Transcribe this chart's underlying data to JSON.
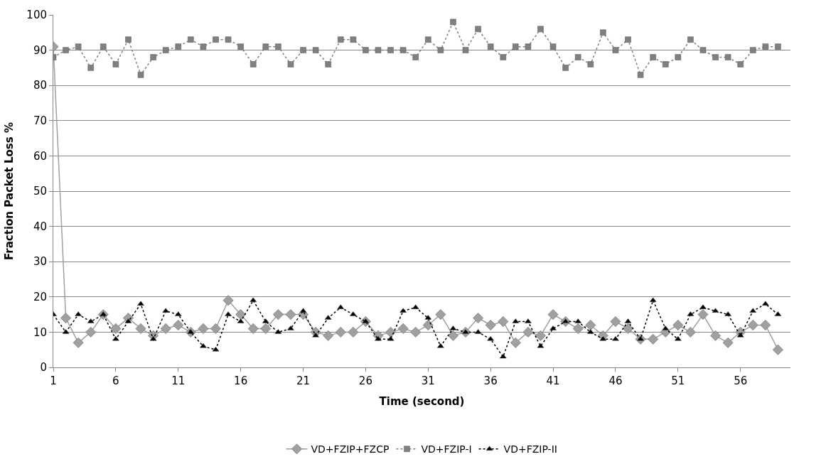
{
  "chart_data": {
    "type": "line",
    "xlabel": "Time (second)",
    "ylabel": "Fraction Packet Loss %",
    "x": [
      1,
      2,
      3,
      4,
      5,
      6,
      7,
      8,
      9,
      10,
      11,
      12,
      13,
      14,
      15,
      16,
      17,
      18,
      19,
      20,
      21,
      22,
      23,
      24,
      25,
      26,
      27,
      28,
      29,
      30,
      31,
      32,
      33,
      34,
      35,
      36,
      37,
      38,
      39,
      40,
      41,
      42,
      43,
      44,
      45,
      46,
      47,
      48,
      49,
      50,
      51,
      52,
      53,
      54,
      55,
      56,
      57,
      58,
      59
    ],
    "series": [
      {
        "name": "VD+FZIP+FZCP",
        "color": "#a0a0a0",
        "marker": "diamond",
        "line_style": "solid",
        "values": [
          91,
          14,
          7,
          10,
          15,
          11,
          14,
          11,
          9,
          11,
          12,
          10,
          11,
          11,
          19,
          15,
          11,
          11,
          15,
          15,
          15,
          10,
          9,
          10,
          10,
          13,
          9,
          10,
          11,
          10,
          12,
          15,
          9,
          10,
          14,
          12,
          13,
          7,
          10,
          9,
          15,
          13,
          11,
          12,
          9,
          13,
          11,
          8,
          8,
          10,
          12,
          10,
          15,
          9,
          7,
          10,
          12,
          12,
          5
        ]
      },
      {
        "name": "VD+FZIP-I",
        "color": "#808080",
        "marker": "square",
        "line_style": "dotted",
        "values": [
          88,
          90,
          91,
          85,
          91,
          86,
          93,
          83,
          88,
          90,
          91,
          93,
          91,
          93,
          93,
          91,
          86,
          91,
          91,
          86,
          90,
          90,
          86,
          93,
          93,
          90,
          90,
          90,
          90,
          88,
          93,
          90,
          98,
          90,
          96,
          91,
          88,
          91,
          91,
          96,
          91,
          85,
          88,
          86,
          95,
          90,
          93,
          83,
          88,
          86,
          88,
          93,
          90,
          88,
          88,
          86,
          90,
          91,
          91
        ]
      },
      {
        "name": "VD+FZIP-II",
        "color": "#000000",
        "marker": "triangle",
        "line_style": "dotted",
        "values": [
          15,
          10,
          15,
          13,
          15,
          8,
          13,
          18,
          8,
          16,
          15,
          10,
          6,
          5,
          15,
          13,
          19,
          13,
          10,
          11,
          16,
          9,
          14,
          17,
          15,
          13,
          8,
          8,
          16,
          17,
          14,
          6,
          11,
          10,
          10,
          8,
          3,
          13,
          13,
          6,
          11,
          13,
          13,
          10,
          8,
          8,
          13,
          8,
          19,
          11,
          8,
          15,
          17,
          16,
          15,
          9,
          16,
          18,
          15
        ]
      }
    ],
    "xlim": [
      1,
      60
    ],
    "xticks": [
      1,
      6,
      11,
      16,
      21,
      26,
      31,
      36,
      41,
      46,
      51,
      56
    ],
    "ylim": [
      0,
      100
    ],
    "yticks": [
      0,
      10,
      20,
      30,
      40,
      50,
      60,
      70,
      80,
      90,
      100
    ],
    "grid": "y",
    "legend": "bottom"
  }
}
